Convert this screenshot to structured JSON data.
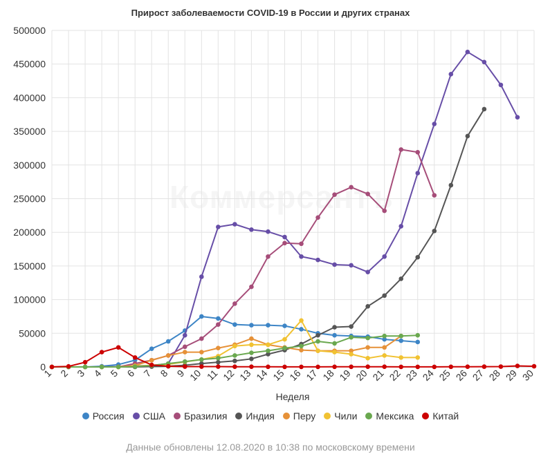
{
  "chart_data": {
    "type": "line",
    "title": "Прирост заболеваемости COVID-19 в России и других странах",
    "xlabel": "Неделя",
    "ylabel": "",
    "x": [
      1,
      2,
      3,
      4,
      5,
      6,
      7,
      8,
      9,
      10,
      11,
      12,
      13,
      14,
      15,
      16,
      17,
      18,
      19,
      20,
      21,
      22,
      23,
      24,
      25,
      26,
      27,
      28,
      29,
      30
    ],
    "xlim": [
      1,
      30
    ],
    "ylim": [
      0,
      500000
    ],
    "yticks": [
      0,
      50000,
      100000,
      150000,
      200000,
      250000,
      300000,
      350000,
      400000,
      450000,
      500000
    ],
    "grid": true,
    "legend_position": "bottom",
    "series": [
      {
        "name": "Россия",
        "color": "#3d85c6",
        "x": [
          1,
          2,
          3,
          4,
          5,
          6,
          7,
          8,
          9,
          10,
          11,
          12,
          13,
          14,
          15,
          16,
          17,
          18,
          19,
          20,
          21,
          22,
          23
        ],
        "values": [
          0,
          0,
          20,
          1000,
          3500,
          10000,
          27000,
          38000,
          54000,
          75000,
          72000,
          63000,
          62000,
          62000,
          61000,
          56000,
          50000,
          47000,
          46000,
          45000,
          41000,
          39000,
          37000
        ]
      },
      {
        "name": "США",
        "color": "#674ea7",
        "x": [
          1,
          2,
          3,
          4,
          5,
          6,
          7,
          8,
          9,
          10,
          11,
          12,
          13,
          14,
          15,
          16,
          17,
          18,
          19,
          20,
          21,
          22,
          23,
          24,
          25,
          26,
          27,
          28,
          29
        ],
        "values": [
          0,
          0,
          0,
          100,
          500,
          1500,
          2000,
          5000,
          47000,
          134000,
          208000,
          212000,
          204000,
          201000,
          193000,
          164000,
          159000,
          152000,
          151000,
          141000,
          164000,
          209000,
          288000,
          361000,
          435000,
          468000,
          453000,
          419000,
          371000
        ]
      },
      {
        "name": "Бразилия",
        "color": "#a64d79",
        "x": [
          1,
          2,
          3,
          4,
          5,
          6,
          7,
          8,
          9,
          10,
          11,
          12,
          13,
          14,
          15,
          16,
          17,
          18,
          19,
          20,
          21,
          22,
          23,
          24
        ],
        "values": [
          0,
          0,
          0,
          0,
          0,
          5000,
          10000,
          17000,
          30000,
          42000,
          63000,
          94000,
          119000,
          164000,
          184000,
          183000,
          222000,
          256000,
          267000,
          257000,
          232000,
          323000,
          319000,
          255000
        ]
      },
      {
        "name": "Индия",
        "color": "#555555",
        "x": [
          1,
          2,
          3,
          4,
          5,
          6,
          7,
          8,
          9,
          10,
          11,
          12,
          13,
          14,
          15,
          16,
          17,
          18,
          19,
          20,
          21,
          22,
          23,
          24,
          25,
          26,
          27
        ],
        "values": [
          0,
          0,
          0,
          0,
          0,
          0,
          500,
          1000,
          2500,
          5000,
          7000,
          9000,
          12000,
          19000,
          25000,
          34000,
          47000,
          59000,
          60000,
          90000,
          106000,
          131000,
          163000,
          202000,
          270000,
          343000,
          383000
        ]
      },
      {
        "name": "Перу",
        "color": "#e69138",
        "x": [
          1,
          2,
          3,
          4,
          5,
          6,
          7,
          8,
          9,
          10,
          11,
          12,
          13,
          14,
          15,
          16,
          17,
          18,
          19,
          20,
          21,
          22
        ],
        "values": [
          0,
          0,
          0,
          0,
          0,
          2000,
          10000,
          17000,
          22000,
          22000,
          28000,
          33000,
          42000,
          33000,
          29000,
          25000,
          24000,
          24000,
          24000,
          29000,
          29000,
          46000
        ]
      },
      {
        "name": "Чили",
        "color": "#f1c232",
        "x": [
          1,
          2,
          3,
          4,
          5,
          6,
          7,
          8,
          9,
          10,
          11,
          12,
          13,
          14,
          15,
          16,
          17,
          18,
          19,
          20,
          21,
          22,
          23
        ],
        "values": [
          0,
          0,
          0,
          0,
          0,
          1000,
          2500,
          4000,
          7500,
          11000,
          16000,
          31000,
          33000,
          33000,
          41000,
          69000,
          24000,
          22000,
          19000,
          13000,
          17000,
          14000,
          14000
        ]
      },
      {
        "name": "Мексика",
        "color": "#6aa84f",
        "x": [
          1,
          2,
          3,
          4,
          5,
          6,
          7,
          8,
          9,
          10,
          11,
          12,
          13,
          14,
          15,
          16,
          17,
          18,
          19,
          20,
          21,
          22,
          23
        ],
        "values": [
          0,
          0,
          0,
          0,
          0,
          500,
          2000,
          5000,
          8000,
          11000,
          13000,
          17000,
          21000,
          24000,
          28000,
          31000,
          38000,
          35000,
          44000,
          43000,
          46000,
          46000,
          47000
        ]
      },
      {
        "name": "Китай",
        "color": "#cc0000",
        "x": [
          1,
          2,
          3,
          4,
          5,
          6,
          7,
          8,
          9,
          10,
          11,
          12,
          13,
          14,
          15,
          16,
          17,
          18,
          19,
          20,
          21,
          22,
          23,
          24,
          25,
          26,
          27,
          28,
          29,
          30
        ],
        "values": [
          100,
          800,
          7000,
          22000,
          29000,
          14000,
          3000,
          1000,
          500,
          500,
          500,
          300,
          300,
          200,
          100,
          100,
          100,
          200,
          200,
          300,
          300,
          100,
          100,
          100,
          200,
          300,
          400,
          500,
          1500,
          1000
        ]
      }
    ]
  },
  "legend": {
    "items": [
      {
        "label": "Россия",
        "color": "#3d85c6"
      },
      {
        "label": "США",
        "color": "#674ea7"
      },
      {
        "label": "Бразилия",
        "color": "#a64d79"
      },
      {
        "label": "Индия",
        "color": "#555555"
      },
      {
        "label": "Перу",
        "color": "#e69138"
      },
      {
        "label": "Чили",
        "color": "#f1c232"
      },
      {
        "label": "Мексика",
        "color": "#6aa84f"
      },
      {
        "label": "Китай",
        "color": "#cc0000"
      }
    ]
  },
  "watermark": "Коммерсантъ",
  "footnote": "Данные обновлены 12.08.2020 в 10:38 по московскому времени"
}
